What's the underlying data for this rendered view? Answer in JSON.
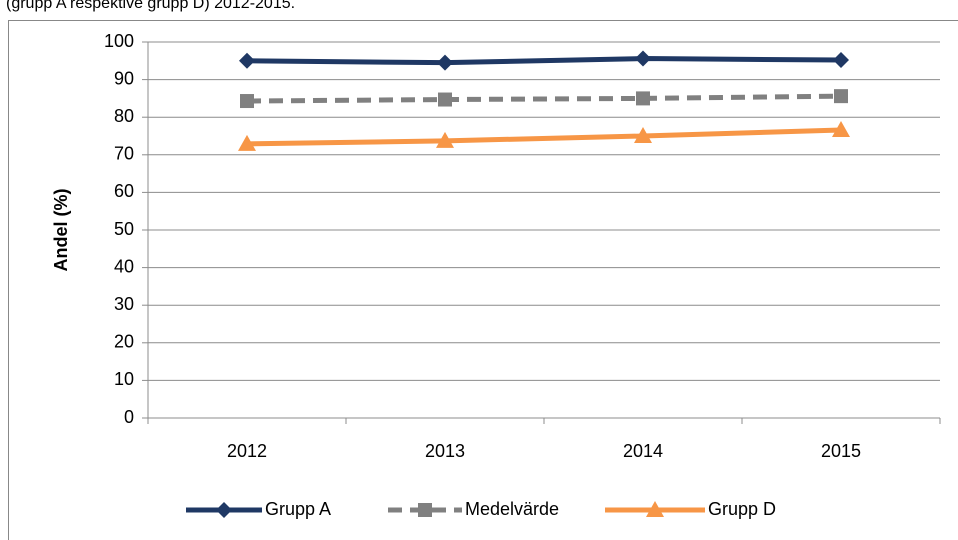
{
  "chart_data": {
    "type": "line",
    "caption": "(grupp A respektive grupp D) 2012-2015.",
    "y_label": "Andel (%)",
    "categories": [
      "2012",
      "2013",
      "2014",
      "2015"
    ],
    "series": [
      {
        "name": "Grupp A",
        "color": "#1f3864",
        "marker": "diamond",
        "dash": false,
        "values": [
          95,
          94.5,
          95.6,
          95.2
        ]
      },
      {
        "name": "Medelvärde",
        "color": "#808080",
        "marker": "square",
        "dash": true,
        "values": [
          84.3,
          84.7,
          85,
          85.6
        ]
      },
      {
        "name": "Grupp D",
        "color": "#f79646",
        "marker": "triangle",
        "dash": false,
        "values": [
          72.9,
          73.7,
          75,
          76.6
        ]
      }
    ],
    "ylim": [
      0,
      100
    ],
    "yticks": [
      0,
      10,
      20,
      30,
      40,
      50,
      60,
      70,
      80,
      90,
      100
    ],
    "grid": true,
    "legend": "bottom"
  }
}
